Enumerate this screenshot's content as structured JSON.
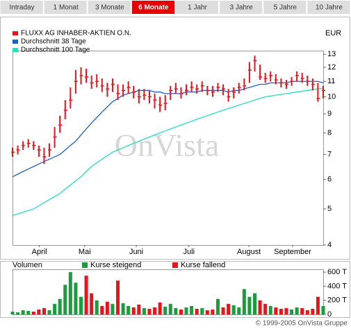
{
  "tabs": [
    "Intraday",
    "1 Monat",
    "3 Monate",
    "6 Monate",
    "1 Jahr",
    "3 Jahre",
    "5 Jahre",
    "10 Jahre"
  ],
  "active_tab": 3,
  "watermark": "OnVista",
  "copyright": "© 1999-2005 OnVista Gruppe",
  "chart_data": [
    {
      "type": "candlestick",
      "unit": "EUR",
      "yscale": "log",
      "ylim": [
        4,
        13.3
      ],
      "yticks": [
        4,
        5,
        6,
        7,
        8,
        9,
        10,
        11,
        12,
        13
      ],
      "xlim": [
        0,
        59
      ],
      "xticks": [
        {
          "value": 5.1,
          "label": "April"
        },
        {
          "value": 13.7,
          "label": "Mai"
        },
        {
          "value": 23.5,
          "label": "Juni"
        },
        {
          "value": 33.5,
          "label": "Juli"
        },
        {
          "value": 44.9,
          "label": "August"
        },
        {
          "value": 53.2,
          "label": "September"
        }
      ],
      "series": [
        {
          "name": "FLUXX AG INHABER-AKTIEN O.N.",
          "color": "#e8141b",
          "values": [
            7.1,
            7.2,
            7.4,
            7.5,
            7.4,
            7.2,
            6.9,
            7.2,
            7.8,
            8.4,
            9.2,
            9.8,
            11.0,
            11.4,
            11.3,
            10.9,
            11.0,
            10.7,
            10.5,
            10.8,
            10.2,
            10.4,
            10.6,
            10.3,
            10.0,
            10.1,
            10.0,
            9.8,
            9.5,
            9.6,
            10.4,
            10.5,
            10.2,
            10.4,
            10.6,
            10.5,
            10.7,
            10.4,
            10.3,
            10.6,
            10.5,
            10.0,
            10.3,
            10.6,
            10.7,
            11.8,
            12.5,
            11.3,
            11.2,
            11.4,
            11.1,
            10.9,
            10.8,
            11.0,
            11.4,
            11.2,
            11.0,
            10.8,
            9.9,
            10.4
          ],
          "high": [
            7.3,
            7.4,
            7.6,
            7.7,
            7.6,
            7.4,
            7.3,
            7.5,
            8.3,
            8.9,
            9.8,
            10.6,
            11.8,
            12.0,
            11.9,
            11.4,
            11.5,
            11.2,
            10.9,
            11.2,
            10.8,
            10.8,
            11.0,
            10.7,
            10.5,
            10.5,
            10.4,
            10.2,
            10.0,
            10.1,
            10.7,
            10.9,
            10.6,
            10.8,
            11.0,
            10.8,
            11.0,
            10.7,
            10.7,
            10.9,
            10.8,
            10.5,
            10.6,
            10.9,
            11.2,
            12.4,
            12.9,
            12.2,
            11.6,
            11.7,
            11.5,
            11.2,
            11.1,
            11.3,
            11.7,
            11.6,
            11.4,
            11.2,
            10.9,
            10.7
          ],
          "low": [
            6.9,
            7.0,
            7.2,
            7.3,
            7.2,
            6.9,
            6.6,
            6.9,
            7.3,
            8.0,
            8.7,
            9.3,
            10.2,
            10.8,
            10.9,
            10.5,
            10.6,
            10.3,
            10.0,
            10.3,
            9.8,
            10.0,
            10.2,
            9.9,
            9.6,
            9.8,
            9.6,
            9.3,
            9.1,
            9.2,
            9.8,
            10.2,
            9.9,
            10.1,
            10.3,
            10.2,
            10.3,
            10.1,
            10.0,
            10.3,
            10.1,
            9.7,
            9.9,
            10.2,
            10.4,
            10.9,
            11.7,
            11.1,
            10.9,
            11.0,
            10.8,
            10.6,
            10.5,
            10.7,
            11.0,
            10.9,
            10.7,
            10.4,
            9.7,
            9.9
          ]
        },
        {
          "name": "Durchschnitt 38 Tage",
          "color": "#1a5fd6",
          "values": [
            6.1,
            6.2,
            6.3,
            6.4,
            6.5,
            6.6,
            6.7,
            6.8,
            6.9,
            7.0,
            7.2,
            7.4,
            7.6,
            7.9,
            8.2,
            8.5,
            8.8,
            9.1,
            9.4,
            9.7,
            9.9,
            10.1,
            10.2,
            10.3,
            10.4,
            10.4,
            10.4,
            10.3,
            10.3,
            10.2,
            10.2,
            10.2,
            10.2,
            10.3,
            10.3,
            10.3,
            10.4,
            10.4,
            10.4,
            10.4,
            10.4,
            10.3,
            10.4,
            10.4,
            10.5,
            10.6,
            10.7,
            10.8,
            10.8,
            10.9,
            10.9,
            10.9,
            10.9,
            11.0,
            11.0,
            11.0,
            11.0,
            11.0,
            11.0,
            10.9
          ]
        },
        {
          "name": "Durchschnitt 100 Tage",
          "color": "#22e0c0",
          "values": [
            4.8,
            4.85,
            4.9,
            4.95,
            5.0,
            5.1,
            5.2,
            5.3,
            5.4,
            5.5,
            5.65,
            5.8,
            5.95,
            6.1,
            6.3,
            6.5,
            6.65,
            6.8,
            6.95,
            7.1,
            7.2,
            7.3,
            7.4,
            7.5,
            7.6,
            7.7,
            7.8,
            7.9,
            8.0,
            8.1,
            8.2,
            8.3,
            8.4,
            8.5,
            8.6,
            8.7,
            8.8,
            8.9,
            9.0,
            9.1,
            9.2,
            9.3,
            9.4,
            9.5,
            9.6,
            9.7,
            9.8,
            9.9,
            10.0,
            10.05,
            10.1,
            10.15,
            10.2,
            10.25,
            10.3,
            10.35,
            10.4,
            10.45,
            10.5,
            10.55
          ]
        }
      ]
    },
    {
      "type": "bar",
      "title": "Volumen",
      "ylim": [
        0,
        640
      ],
      "yticks": [
        0,
        {
          "value": 200,
          "label": "200 T"
        },
        {
          "value": 400,
          "label": "400 T"
        },
        {
          "value": 600,
          "label": "600 T"
        }
      ],
      "xlim": [
        0,
        59
      ],
      "series": [
        {
          "name": "Kurse steigend",
          "color": "#1a9e3c",
          "values": [
            40,
            30,
            60,
            50,
            null,
            null,
            null,
            60,
            150,
            220,
            420,
            600,
            450,
            250,
            null,
            null,
            200,
            null,
            null,
            150,
            null,
            160,
            120,
            null,
            null,
            90,
            null,
            null,
            null,
            110,
            150,
            90,
            null,
            100,
            120,
            null,
            90,
            null,
            null,
            220,
            null,
            null,
            130,
            100,
            360,
            250,
            300,
            null,
            null,
            120,
            null,
            null,
            null,
            70,
            100,
            null,
            null,
            null,
            null,
            120
          ]
        },
        {
          "name": "Kurse fallend",
          "color": "#e8141b",
          "values": [
            null,
            null,
            null,
            null,
            40,
            70,
            90,
            null,
            null,
            null,
            null,
            null,
            null,
            null,
            550,
            300,
            null,
            120,
            180,
            null,
            480,
            null,
            null,
            100,
            140,
            null,
            80,
            100,
            170,
            null,
            null,
            null,
            70,
            null,
            null,
            80,
            null,
            60,
            70,
            null,
            100,
            150,
            null,
            null,
            null,
            null,
            null,
            200,
            150,
            null,
            100,
            80,
            90,
            null,
            null,
            90,
            60,
            80,
            250,
            null
          ]
        }
      ]
    }
  ]
}
